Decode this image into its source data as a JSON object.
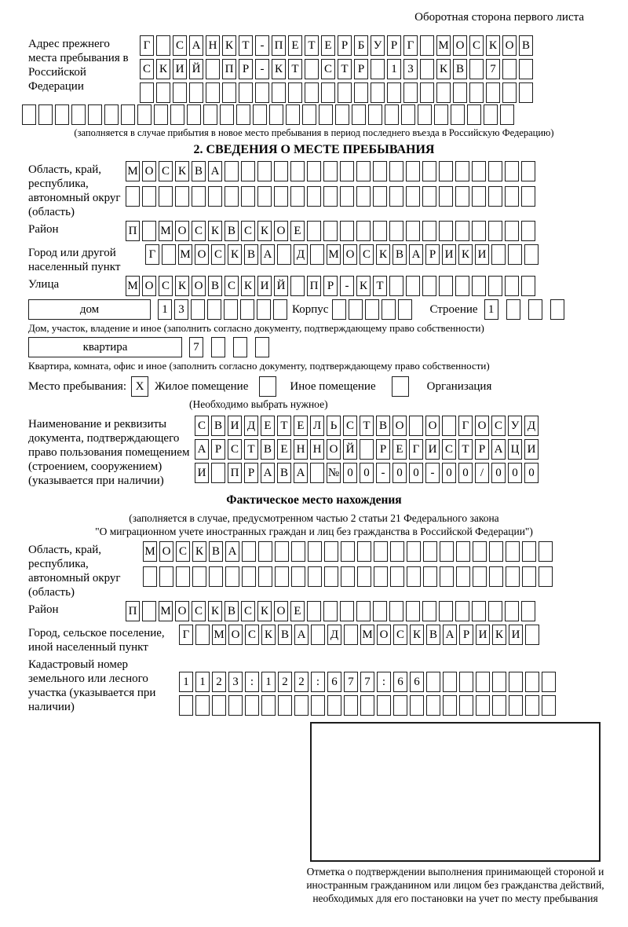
{
  "page": {
    "top_right_title": "Оборотная сторона первого листа"
  },
  "prev_address": {
    "label": "Адрес прежнего места пребывания в Российской Федерации",
    "rows": [
      [
        "Г",
        "",
        "С",
        "А",
        "Н",
        "К",
        "Т",
        "-",
        "П",
        "Е",
        "Т",
        "Е",
        "Р",
        "Б",
        "У",
        "Р",
        "Г",
        "",
        "М",
        "О",
        "С",
        "К",
        "О",
        "В"
      ],
      [
        "С",
        "К",
        "И",
        "Й",
        "",
        "П",
        "Р",
        "-",
        "К",
        "Т",
        "",
        "С",
        "Т",
        "Р",
        "",
        "1",
        "3",
        "",
        "К",
        "В",
        "",
        "7",
        "",
        ""
      ],
      [
        "",
        "",
        "",
        "",
        "",
        "",
        "",
        "",
        "",
        "",
        "",
        "",
        "",
        "",
        "",
        "",
        "",
        "",
        "",
        "",
        "",
        "",
        "",
        ""
      ]
    ],
    "full_row": [
      "",
      "",
      "",
      "",
      "",
      "",
      "",
      "",
      "",
      "",
      "",
      "",
      "",
      "",
      "",
      "",
      "",
      "",
      "",
      "",
      "",
      "",
      "",
      "",
      "",
      "",
      "",
      "",
      "",
      ""
    ],
    "note": "(заполняется в случае прибытия в новое место пребывания в период последнего въезда в Российскую Федерацию)"
  },
  "section2": {
    "heading": "2. СВЕДЕНИЯ О МЕСТЕ ПРЕБЫВАНИЯ",
    "region": {
      "label": "Область, край, республика, автономный округ (область)",
      "rows": [
        [
          "М",
          "О",
          "С",
          "К",
          "В",
          "А",
          "",
          "",
          "",
          "",
          "",
          "",
          "",
          "",
          "",
          "",
          "",
          "",
          "",
          "",
          "",
          "",
          "",
          "",
          ""
        ],
        [
          "",
          "",
          "",
          "",
          "",
          "",
          "",
          "",
          "",
          "",
          "",
          "",
          "",
          "",
          "",
          "",
          "",
          "",
          "",
          "",
          "",
          "",
          "",
          "",
          ""
        ]
      ]
    },
    "district": {
      "label": "Район",
      "cells": [
        "П",
        "",
        "М",
        "О",
        "С",
        "К",
        "В",
        "С",
        "К",
        "О",
        "Е",
        "",
        "",
        "",
        "",
        "",
        "",
        "",
        "",
        "",
        "",
        "",
        "",
        "",
        ""
      ]
    },
    "city": {
      "label": "Город или другой населенный пункт",
      "cells": [
        "Г",
        "",
        "М",
        "О",
        "С",
        "К",
        "В",
        "А",
        "",
        "Д",
        "",
        "М",
        "О",
        "С",
        "К",
        "В",
        "А",
        "Р",
        "И",
        "К",
        "И",
        "",
        "",
        ""
      ]
    },
    "street": {
      "label": "Улица",
      "cells": [
        "М",
        "О",
        "С",
        "К",
        "О",
        "В",
        "С",
        "К",
        "И",
        "Й",
        "",
        "П",
        "Р",
        "-",
        "К",
        "Т",
        "",
        "",
        "",
        "",
        "",
        "",
        "",
        "",
        ""
      ]
    },
    "house": {
      "box_label": "дом",
      "cells": [
        "1",
        "3",
        "",
        "",
        "",
        "",
        "",
        ""
      ],
      "korpus_label": "Корпус",
      "korpus_cells": [
        "",
        "",
        "",
        "",
        ""
      ],
      "stroenie_label": "Строение",
      "stroenie_cells": [
        "1",
        "",
        "",
        ""
      ]
    },
    "house_note": "Дом, участок, владение и иное (заполнить согласно документу, подтверждающему право собственности)",
    "apartment": {
      "box_label": "квартира",
      "cells": [
        "7",
        "",
        "",
        ""
      ]
    },
    "apartment_note": "Квартира, комната, офис и иное (заполнить согласно документу, подтверждающему право собственности)",
    "stay": {
      "label": "Место пребывания:",
      "options": [
        {
          "label": "Жилое помещение",
          "mark": "X"
        },
        {
          "label": "Иное помещение",
          "mark": ""
        },
        {
          "label": "Организация",
          "mark": ""
        }
      ],
      "note": "(Необходимо выбрать нужное)"
    },
    "document": {
      "label": "Наименование и реквизиты документа, подтверждающего право пользования помещением (строением, сооружением) (указывается при наличии)",
      "rows": [
        [
          "С",
          "В",
          "И",
          "Д",
          "Е",
          "Т",
          "Е",
          "Л",
          "Ь",
          "С",
          "Т",
          "В",
          "О",
          "",
          "О",
          "",
          "Г",
          "О",
          "С",
          "У",
          "Д"
        ],
        [
          "А",
          "Р",
          "С",
          "Т",
          "В",
          "Е",
          "Н",
          "Н",
          "О",
          "Й",
          "",
          "Р",
          "Е",
          "Г",
          "И",
          "С",
          "Т",
          "Р",
          "А",
          "Ц",
          "И"
        ],
        [
          "И",
          "",
          "П",
          "Р",
          "А",
          "В",
          "А",
          "",
          "№",
          "0",
          "0",
          "-",
          "0",
          "0",
          "-",
          "0",
          "0",
          "/",
          "0",
          "0",
          "0"
        ]
      ]
    }
  },
  "actual_location": {
    "heading": "Фактическое место нахождения",
    "note1": "(заполняется в случае, предусмотренном частью 2 статьи 21 Федерального закона",
    "note2": "\"О миграционном учете иностранных граждан и лиц без гражданства в Российской Федерации\")",
    "region": {
      "label": "Область, край, республика, автономный округ (область)",
      "rows": [
        [
          "М",
          "О",
          "С",
          "К",
          "В",
          "А",
          "",
          "",
          "",
          "",
          "",
          "",
          "",
          "",
          "",
          "",
          "",
          "",
          "",
          "",
          "",
          "",
          "",
          "",
          ""
        ],
        [
          "",
          "",
          "",
          "",
          "",
          "",
          "",
          "",
          "",
          "",
          "",
          "",
          "",
          "",
          "",
          "",
          "",
          "",
          "",
          "",
          "",
          "",
          "",
          "",
          ""
        ]
      ]
    },
    "district": {
      "label": "Район",
      "cells": [
        "П",
        "",
        "М",
        "О",
        "С",
        "К",
        "В",
        "С",
        "К",
        "О",
        "Е",
        "",
        "",
        "",
        "",
        "",
        "",
        "",
        "",
        "",
        "",
        "",
        "",
        "",
        ""
      ]
    },
    "city": {
      "label": "Город, сельское поселение, иной населенный пункт",
      "cells": [
        "Г",
        "",
        "М",
        "О",
        "С",
        "К",
        "В",
        "А",
        "",
        "Д",
        "",
        "М",
        "О",
        "С",
        "К",
        "В",
        "А",
        "Р",
        "И",
        "К",
        "И",
        ""
      ]
    },
    "cadastral": {
      "label": "Кадастровый номер земельного или лесного участка (указывается при наличии)",
      "rows": [
        [
          "1",
          "1",
          "2",
          "3",
          ":",
          "1",
          "2",
          "2",
          ":",
          "6",
          "7",
          "7",
          ":",
          "6",
          "6",
          "",
          "",
          "",
          "",
          "",
          "",
          "",
          ""
        ],
        [
          "",
          "",
          "",
          "",
          "",
          "",
          "",
          "",
          "",
          "",
          "",
          "",
          "",
          "",
          "",
          "",
          "",
          "",
          "",
          "",
          "",
          "",
          ""
        ]
      ]
    }
  },
  "stamp": {
    "caption": "Отметка о подтверждении выполнения принимающей стороной и иностранным гражданином или лицом без гражданства действий, необходимых для его постановки на учет по месту пребывания"
  }
}
